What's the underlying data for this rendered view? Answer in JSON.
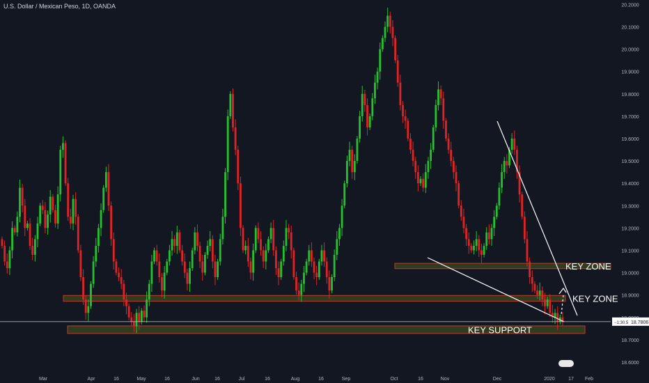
{
  "header": {
    "symbol_title": "U.S. Dollar / Mexican Peso, 1D, OANDA"
  },
  "colors": {
    "background": "#131722",
    "up": "#26c22e",
    "down": "#e02424",
    "zone_fill": "#3a4a1f",
    "zone_border": "#c0392b",
    "trendline": "#ffffff",
    "axis_text": "#b2b5be"
  },
  "chart_data": {
    "type": "candlestick",
    "ylim": [
      18.55,
      20.22
    ],
    "y_ticks": [
      "20.2000",
      "20.1000",
      "20.0000",
      "19.9000",
      "19.8000",
      "19.7000",
      "19.6000",
      "19.5000",
      "19.4000",
      "19.3000",
      "19.2000",
      "19.1000",
      "19.0000",
      "18.9000",
      "18.8000",
      "18.7000",
      "18.6000"
    ],
    "x_ticks": [
      "Mar",
      "Apr",
      "16",
      "May",
      "16",
      "Jun",
      "16",
      "Jul",
      "16",
      "Aug",
      "16",
      "Sep",
      "Oct",
      "16",
      "Nov",
      "Dec",
      "2020",
      "17",
      "Feb"
    ],
    "last_price_label": "18.78067",
    "last_price_prefix": "−1:30.5",
    "last_price": 18.781,
    "annotations": [
      {
        "label": "KEY ZONE",
        "y_low": 19.018,
        "y_high": 19.042
      },
      {
        "label": "KEY ZONE",
        "y_low": 18.872,
        "y_high": 18.898
      },
      {
        "label": "KEY SUPPORT",
        "y_low": 18.728,
        "y_high": 18.762
      }
    ],
    "closes": [
      19.12,
      19.05,
      19.02,
      19.1,
      19.2,
      19.18,
      19.25,
      19.38,
      19.3,
      19.2,
      19.22,
      19.12,
      19.08,
      19.15,
      19.22,
      19.3,
      19.28,
      19.2,
      19.26,
      19.34,
      19.28,
      19.22,
      19.35,
      19.55,
      19.58,
      19.4,
      19.25,
      19.22,
      19.33,
      19.25,
      19.1,
      18.98,
      18.88,
      18.82,
      18.85,
      18.95,
      19.05,
      19.12,
      19.2,
      19.28,
      19.38,
      19.45,
      19.3,
      19.15,
      19.05,
      19.0,
      18.98,
      18.95,
      18.88,
      18.85,
      18.8,
      18.78,
      18.76,
      18.82,
      18.78,
      18.83,
      18.8,
      18.88,
      18.95,
      19.05,
      19.1,
      19.05,
      18.98,
      18.92,
      19.0,
      19.05,
      19.1,
      19.15,
      19.12,
      19.18,
      19.1,
      19.05,
      19.0,
      18.95,
      19.02,
      19.1,
      19.18,
      19.12,
      19.05,
      19.0,
      19.08,
      19.12,
      19.15,
      19.05,
      18.98,
      19.05,
      19.15,
      19.25,
      19.45,
      19.7,
      19.8,
      19.65,
      19.55,
      19.4,
      19.2,
      19.1,
      19.12,
      19.05,
      19.0,
      19.1,
      19.2,
      19.15,
      19.1,
      19.05,
      19.1,
      19.15,
      19.2,
      19.1,
      19.02,
      18.98,
      19.05,
      19.12,
      19.2,
      19.18,
      19.1,
      18.98,
      18.92,
      18.9,
      18.95,
      19.0,
      19.05,
      19.1,
      19.05,
      19.0,
      18.98,
      19.05,
      19.1,
      19.05,
      18.98,
      18.92,
      18.98,
      19.08,
      19.15,
      19.2,
      19.3,
      19.4,
      19.5,
      19.55,
      19.45,
      19.5,
      19.6,
      19.7,
      19.8,
      19.75,
      19.65,
      19.7,
      19.78,
      19.85,
      19.9,
      20.0,
      20.05,
      20.1,
      20.15,
      20.1,
      20.05,
      19.95,
      19.85,
      19.75,
      19.7,
      19.68,
      19.6,
      19.55,
      19.5,
      19.45,
      19.4,
      19.42,
      19.38,
      19.45,
      19.5,
      19.55,
      19.65,
      19.75,
      19.82,
      19.78,
      19.68,
      19.6,
      19.55,
      19.5,
      19.45,
      19.4,
      19.3,
      19.25,
      19.2,
      19.15,
      19.12,
      19.1,
      19.12,
      19.15,
      19.1,
      19.08,
      19.12,
      19.18,
      19.15,
      19.2,
      19.25,
      19.3,
      19.38,
      19.45,
      19.5,
      19.48,
      19.55,
      19.6,
      19.55,
      19.45,
      19.35,
      19.25,
      19.15,
      19.05,
      18.98,
      18.95,
      18.92,
      18.9,
      18.92,
      18.88,
      18.85,
      18.88,
      18.82,
      18.8,
      18.82,
      18.78,
      18.8,
      18.78
    ]
  }
}
